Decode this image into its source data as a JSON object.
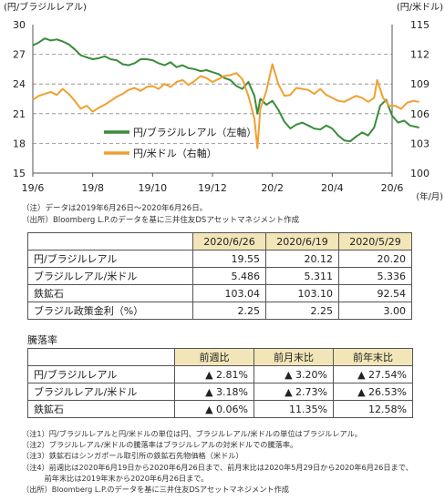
{
  "chart_data": {
    "type": "line",
    "ylabel_left": "(円/ブラジルレアル)",
    "ylabel_right": "(円/米ドル)",
    "x_unit_label": "(年/月)",
    "x_tick_labels": [
      "19/6",
      "19/8",
      "19/10",
      "19/12",
      "20/2",
      "20/4",
      "20/6"
    ],
    "y_left": {
      "min": 15,
      "max": 30,
      "ticks": [
        "15",
        "18",
        "21",
        "24",
        "27",
        "30"
      ]
    },
    "y_right": {
      "min": 100,
      "max": 115,
      "ticks": [
        "100",
        "103",
        "106",
        "109",
        "112",
        "115"
      ]
    },
    "grid": "horizontal-dashed",
    "legend_position": "center-right",
    "series": [
      {
        "name": "円/ブラジルレアル（左軸）",
        "axis": "left",
        "color": "#3a8c3a",
        "points": [
          [
            0,
            27.9
          ],
          [
            0.2,
            28.2
          ],
          [
            0.4,
            28.6
          ],
          [
            0.6,
            28.4
          ],
          [
            0.8,
            28.5
          ],
          [
            1.0,
            28.3
          ],
          [
            1.2,
            28.0
          ],
          [
            1.4,
            27.5
          ],
          [
            1.6,
            26.9
          ],
          [
            1.8,
            26.7
          ],
          [
            2.0,
            26.5
          ],
          [
            2.2,
            26.6
          ],
          [
            2.4,
            26.8
          ],
          [
            2.6,
            26.5
          ],
          [
            2.8,
            26.4
          ],
          [
            3.0,
            26.0
          ],
          [
            3.2,
            25.9
          ],
          [
            3.4,
            26.1
          ],
          [
            3.6,
            26.5
          ],
          [
            3.8,
            26.5
          ],
          [
            4.0,
            26.4
          ],
          [
            4.2,
            26.1
          ],
          [
            4.4,
            25.9
          ],
          [
            4.6,
            26.2
          ],
          [
            4.8,
            25.7
          ],
          [
            5.0,
            25.9
          ],
          [
            5.2,
            25.6
          ],
          [
            5.4,
            25.5
          ],
          [
            5.6,
            25.3
          ],
          [
            5.8,
            25.4
          ],
          [
            6.0,
            25.2
          ],
          [
            6.2,
            25.0
          ],
          [
            6.4,
            24.6
          ],
          [
            6.6,
            24.4
          ],
          [
            6.8,
            23.8
          ],
          [
            7.0,
            23.5
          ],
          [
            7.2,
            24.2
          ],
          [
            7.4,
            22.8
          ],
          [
            7.5,
            21.0
          ],
          [
            7.6,
            22.5
          ],
          [
            7.8,
            21.9
          ],
          [
            8.0,
            22.3
          ],
          [
            8.2,
            21.4
          ],
          [
            8.4,
            20.2
          ],
          [
            8.6,
            19.5
          ],
          [
            8.8,
            19.9
          ],
          [
            9.0,
            20.1
          ],
          [
            9.2,
            19.8
          ],
          [
            9.4,
            19.5
          ],
          [
            9.6,
            19.4
          ],
          [
            9.8,
            19.8
          ],
          [
            10.0,
            19.5
          ],
          [
            10.2,
            18.8
          ],
          [
            10.4,
            18.3
          ],
          [
            10.6,
            18.2
          ],
          [
            10.8,
            18.7
          ],
          [
            11.0,
            19.1
          ],
          [
            11.2,
            18.8
          ],
          [
            11.4,
            19.6
          ],
          [
            11.6,
            21.8
          ],
          [
            11.8,
            22.4
          ],
          [
            12.0,
            20.8
          ],
          [
            12.2,
            20.1
          ],
          [
            12.4,
            20.3
          ],
          [
            12.6,
            19.8
          ],
          [
            12.9,
            19.6
          ]
        ]
      },
      {
        "name": "円/米ドル（右軸）",
        "axis": "right",
        "color": "#f0a030",
        "points": [
          [
            0,
            107.4
          ],
          [
            0.2,
            107.8
          ],
          [
            0.4,
            108.0
          ],
          [
            0.6,
            108.2
          ],
          [
            0.8,
            107.9
          ],
          [
            1.0,
            108.5
          ],
          [
            1.2,
            108.0
          ],
          [
            1.4,
            107.3
          ],
          [
            1.6,
            106.5
          ],
          [
            1.8,
            106.8
          ],
          [
            2.0,
            106.2
          ],
          [
            2.2,
            106.6
          ],
          [
            2.4,
            106.9
          ],
          [
            2.6,
            107.3
          ],
          [
            2.8,
            107.7
          ],
          [
            3.0,
            108.0
          ],
          [
            3.2,
            108.4
          ],
          [
            3.4,
            108.6
          ],
          [
            3.6,
            108.3
          ],
          [
            3.8,
            108.7
          ],
          [
            4.0,
            108.8
          ],
          [
            4.2,
            108.5
          ],
          [
            4.4,
            109.0
          ],
          [
            4.6,
            108.7
          ],
          [
            4.8,
            109.2
          ],
          [
            5.0,
            109.4
          ],
          [
            5.2,
            108.9
          ],
          [
            5.4,
            109.3
          ],
          [
            5.6,
            109.8
          ],
          [
            5.8,
            109.6
          ],
          [
            6.0,
            109.2
          ],
          [
            6.2,
            109.5
          ],
          [
            6.4,
            109.8
          ],
          [
            6.6,
            109.9
          ],
          [
            6.8,
            110.1
          ],
          [
            7.0,
            109.5
          ],
          [
            7.2,
            107.8
          ],
          [
            7.4,
            105.5
          ],
          [
            7.5,
            102.5
          ],
          [
            7.6,
            106.5
          ],
          [
            7.8,
            108.3
          ],
          [
            8.0,
            111.0
          ],
          [
            8.2,
            109.0
          ],
          [
            8.4,
            107.8
          ],
          [
            8.6,
            107.9
          ],
          [
            8.8,
            108.6
          ],
          [
            9.0,
            108.5
          ],
          [
            9.2,
            108.4
          ],
          [
            9.4,
            108.0
          ],
          [
            9.6,
            108.5
          ],
          [
            9.8,
            107.9
          ],
          [
            10.0,
            107.6
          ],
          [
            10.2,
            107.3
          ],
          [
            10.4,
            107.2
          ],
          [
            10.6,
            107.5
          ],
          [
            10.8,
            107.8
          ],
          [
            11.0,
            107.6
          ],
          [
            11.2,
            107.2
          ],
          [
            11.4,
            107.6
          ],
          [
            11.5,
            109.4
          ],
          [
            11.7,
            107.6
          ],
          [
            11.9,
            106.8
          ],
          [
            12.1,
            106.8
          ],
          [
            12.3,
            106.5
          ],
          [
            12.5,
            107.1
          ],
          [
            12.7,
            107.3
          ],
          [
            12.9,
            107.2
          ]
        ]
      }
    ]
  },
  "chart_notes": [
    "（注）データは2019年6月26日～2020年6月26日。",
    "（出所）Bloomberg L.P.のデータを基に三井住友DSアセットマネジメント作成"
  ],
  "table1": {
    "headers": [
      "2020/6/26",
      "2020/6/19",
      "2020/5/29"
    ],
    "rows": [
      {
        "label": "円/ブラジルレアル",
        "values": [
          "19.55",
          "20.12",
          "20.20"
        ]
      },
      {
        "label": "ブラジルレアル/米ドル",
        "values": [
          "5.486",
          "5.311",
          "5.336"
        ]
      },
      {
        "label": "鉄鉱石",
        "values": [
          "103.04",
          "103.10",
          "92.54"
        ]
      },
      {
        "label": "ブラジル政策金利（%）",
        "values": [
          "2.25",
          "2.25",
          "3.00"
        ]
      }
    ]
  },
  "table2_title": "騰落率",
  "table2": {
    "headers": [
      "前週比",
      "前月末比",
      "前年末比"
    ],
    "rows": [
      {
        "label": "円/ブラジルレアル",
        "values": [
          "▲ 2.81%",
          "▲ 3.20%",
          "▲ 27.54%"
        ]
      },
      {
        "label": "ブラジルレアル/米ドル",
        "values": [
          "▲ 3.18%",
          "▲ 2.73%",
          "▲ 26.53%"
        ]
      },
      {
        "label": "鉄鉱石",
        "values": [
          "▲ 0.06%",
          "11.35%",
          "12.58%"
        ]
      }
    ]
  },
  "footnotes": [
    "（注1）円/ブラジルレアルと円/米ドルの単位は円、ブラジルレアル/米ドルの単位はブラジルレアル。",
    "（注2）ブラジルレアル/米ドルの騰落率はブラジルレアルの対米ドルでの騰落率。",
    "（注3）鉄鉱石はシンガポール取引所の鉄鉱石先物価格（米ドル）",
    "（注4）前週比は2020年6月19日から2020年6月26日まで、前月末比は2020年5月29日から2020年6月26日まで、",
    "　　　前年末比は2019年末から2020年6月26日まで。",
    "（出所）Bloomberg L.P.のデータを基に三井住友DSアセットマネジメント作成"
  ]
}
